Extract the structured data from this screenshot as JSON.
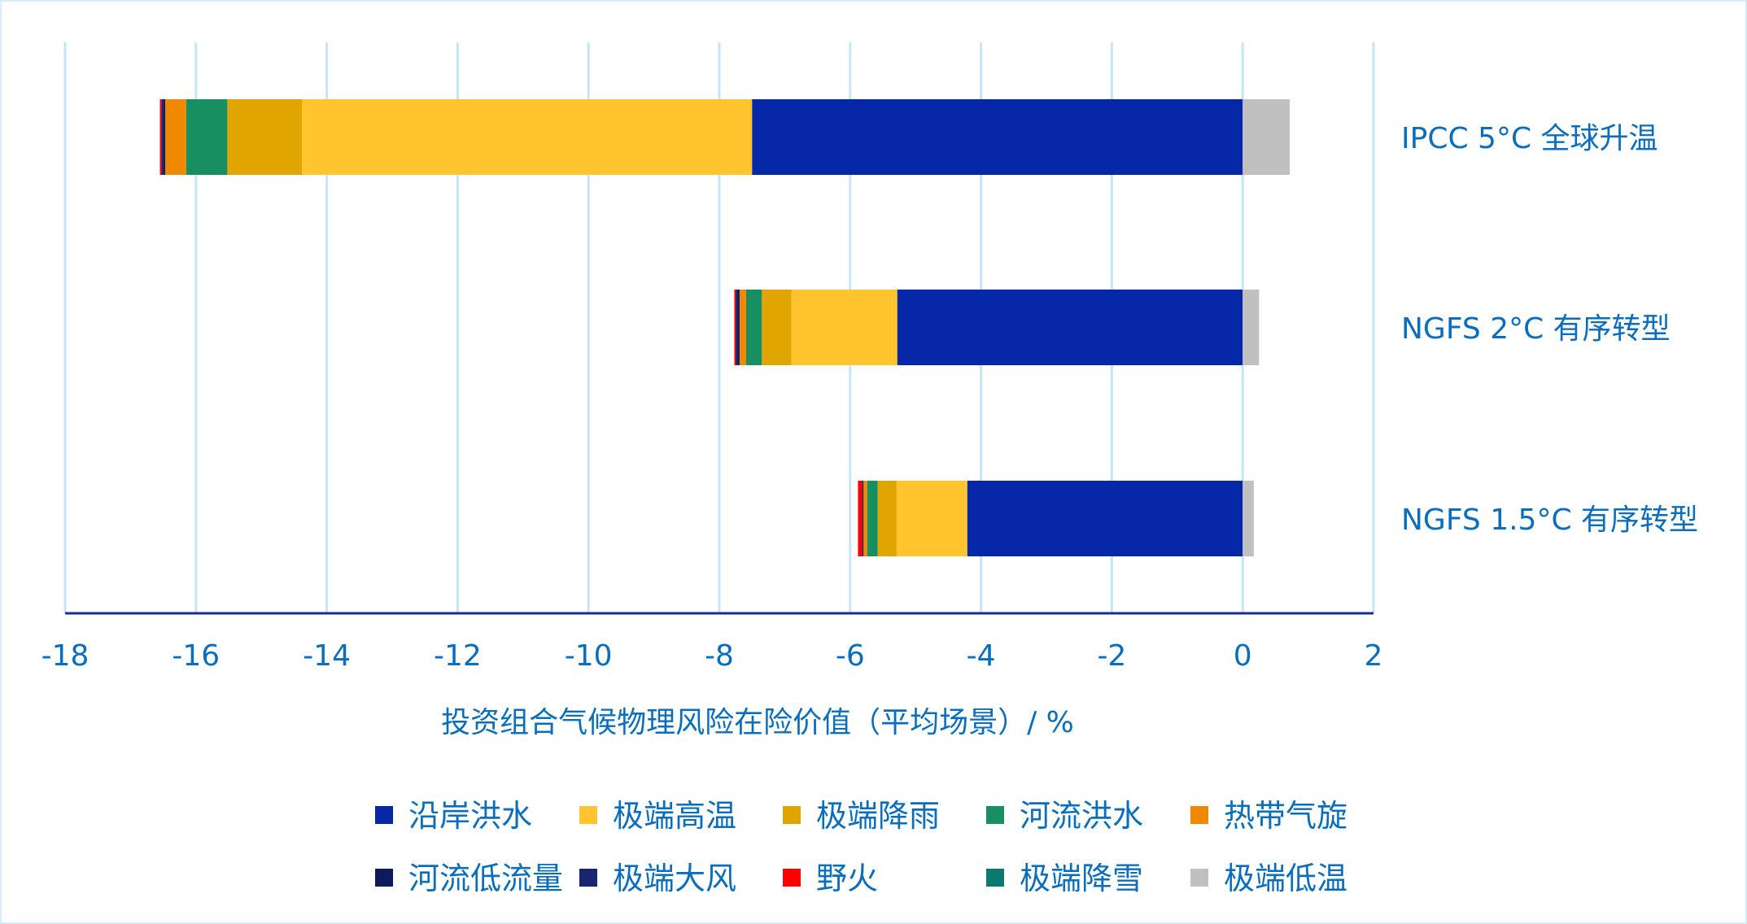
{
  "chart_data": {
    "type": "bar",
    "orientation": "horizontal-stacked",
    "xlabel": "投资组合气候物理风险在险价值（平均场景）/ %",
    "xlim": [
      -18,
      2
    ],
    "xticks": [
      -18,
      -16,
      -14,
      -12,
      -10,
      -8,
      -6,
      -4,
      -2,
      0,
      2
    ],
    "grid": true,
    "legend_position": "bottom",
    "categories": [
      "IPCC 5°C 全球升温",
      "NGFS 2°C 有序转型",
      "NGFS 1.5°C 有序转型"
    ],
    "series": [
      {
        "name": "沿岸洪水",
        "color": "#0527A8",
        "values": [
          -7.5,
          -5.28,
          -4.21
        ]
      },
      {
        "name": "极端高温",
        "color": "#FFC42E",
        "values": [
          -6.88,
          -1.62,
          -1.08
        ]
      },
      {
        "name": "极端降雨",
        "color": "#E0A500",
        "values": [
          -1.14,
          -0.45,
          -0.29
        ]
      },
      {
        "name": "河流洪水",
        "color": "#178F60",
        "values": [
          -0.63,
          -0.24,
          -0.16
        ]
      },
      {
        "name": "热带气旋",
        "color": "#F08800",
        "values": [
          -0.32,
          -0.1,
          -0.06
        ]
      },
      {
        "name": "河流低流量",
        "color": "#0E1A5C",
        "values": [
          -0.03,
          -0.03,
          -0.01
        ]
      },
      {
        "name": "极端大风",
        "color": "#1A2470",
        "values": [
          -0.03,
          -0.03,
          -0.01
        ]
      },
      {
        "name": "野火",
        "color": "#FF0000",
        "values": [
          -0.02,
          -0.02,
          -0.06
        ]
      },
      {
        "name": "极端降雪",
        "color": "#0B7A6E",
        "values": [
          0,
          0,
          0
        ]
      },
      {
        "name": "极端低温",
        "color": "#C0C0C0",
        "values": [
          0.72,
          0.25,
          0.17
        ]
      }
    ]
  }
}
